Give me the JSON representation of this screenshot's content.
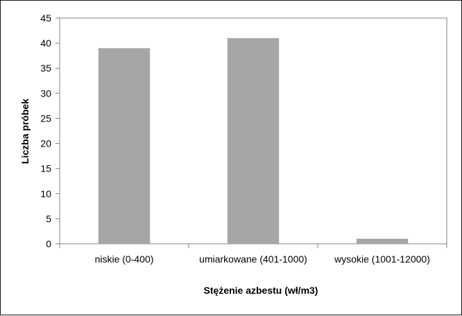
{
  "chart_data": {
    "type": "bar",
    "title": "",
    "categories": [
      "niskie (0-400)",
      "umiarkowane (401-1000)",
      "wysokie (1001-12000)"
    ],
    "values": [
      39,
      41,
      1
    ],
    "xlabel": "Stężenie azbestu (wł/m3)",
    "ylabel": "Liczba próbek",
    "ylim": [
      0,
      45
    ],
    "yticks": [
      0,
      5,
      10,
      15,
      20,
      25,
      30,
      35,
      40,
      45
    ],
    "grid": false,
    "legend": "none",
    "bar_color": "#a6a6a6",
    "axis_color": "#808080"
  }
}
